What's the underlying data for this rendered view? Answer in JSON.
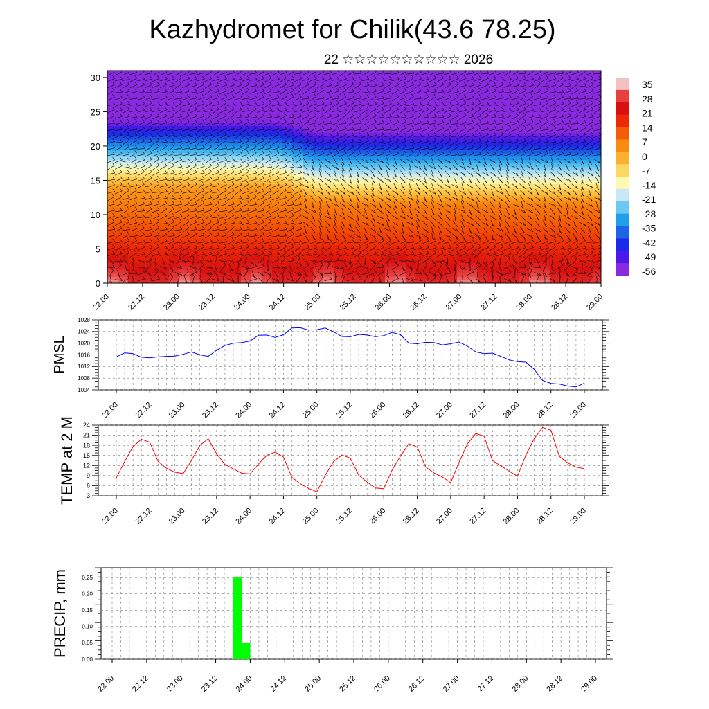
{
  "title": "Kazhydromet for Chilik(43.6 78.25)",
  "subtitle": "22 ☆☆☆☆☆☆☆☆☆☆ 2026",
  "time_ticks": [
    "22.00",
    "22.12",
    "23.00",
    "23.12",
    "24.00",
    "24.12",
    "25.00",
    "25.12",
    "26.00",
    "26.12",
    "27.00",
    "27.12",
    "28.00",
    "28.12",
    "29.00"
  ],
  "chart_data": [
    {
      "type": "heatmap",
      "name": "temperature-wind-cross-section",
      "y_ticks": [
        0,
        5,
        10,
        15,
        20,
        25,
        30
      ],
      "ylim": [
        0,
        31
      ],
      "colorbar": {
        "labels": [
          "35",
          "28",
          "21",
          "14",
          "7",
          "0",
          "-7",
          "-14",
          "-21",
          "-28",
          "-35",
          "-42",
          "-49",
          "-56"
        ],
        "colors": [
          "#f2c0c0",
          "#e84040",
          "#d81010",
          "#ee2a06",
          "#f55c05",
          "#fa8a10",
          "#fcb030",
          "#fdd860",
          "#fff8b0",
          "#c8e8f4",
          "#6cc8f0",
          "#20a0ec",
          "#1e64e8",
          "#1a2ae8",
          "#4c18ea",
          "#8a2ae0"
        ]
      }
    },
    {
      "type": "line",
      "name": "pmsl",
      "ylabel": "PMSL",
      "ylim": [
        1004,
        1028
      ],
      "y_ticks": [
        1004,
        1008,
        1012,
        1016,
        1020,
        1024,
        1028
      ],
      "color": "#0000ff",
      "x_step_hours": 3,
      "values": [
        1015.3,
        1016.7,
        1016.4,
        1015.2,
        1015.0,
        1015.3,
        1015.5,
        1015.6,
        1016.2,
        1017.0,
        1016.0,
        1015.5,
        1017.6,
        1019.2,
        1020.0,
        1020.2,
        1020.7,
        1022.7,
        1022.8,
        1022.0,
        1022.9,
        1025.2,
        1025.3,
        1024.5,
        1024.6,
        1025.2,
        1023.9,
        1022.3,
        1022.2,
        1023.0,
        1022.8,
        1022.2,
        1022.6,
        1023.7,
        1022.9,
        1020.0,
        1019.8,
        1020.3,
        1020.2,
        1019.4,
        1019.8,
        1020.4,
        1019.0,
        1017.0,
        1016.4,
        1016.6,
        1015.5,
        1014.3,
        1013.7,
        1013.5,
        1011.0,
        1007.2,
        1006.2,
        1006.0,
        1005.3,
        1005.0,
        1006.3
      ]
    },
    {
      "type": "line",
      "name": "temp-2m",
      "ylabel": "TEMP at 2 M",
      "ylim": [
        3,
        24
      ],
      "y_ticks": [
        3,
        6,
        9,
        12,
        15,
        18,
        21,
        24
      ],
      "color": "#ff0000",
      "x_step_hours": 3,
      "values": [
        8.3,
        13.2,
        17.6,
        19.8,
        18.9,
        13.2,
        11.2,
        10.0,
        9.6,
        13.5,
        18.0,
        19.9,
        15.5,
        12.3,
        11.0,
        9.7,
        9.5,
        12.4,
        15.0,
        16.0,
        14.5,
        8.5,
        6.6,
        5.2,
        4.2,
        9.1,
        13.2,
        15.1,
        14.2,
        9.1,
        7.1,
        5.3,
        5.1,
        10.7,
        14.8,
        18.5,
        17.5,
        11.6,
        9.8,
        8.6,
        6.9,
        12.9,
        18.4,
        21.5,
        20.7,
        13.5,
        11.9,
        10.3,
        8.8,
        15.1,
        20.0,
        23.3,
        22.5,
        14.7,
        12.8,
        11.5,
        11.1
      ]
    },
    {
      "type": "bar",
      "name": "precip",
      "ylabel": "PRECIP, mm",
      "ylim": [
        0,
        0.28
      ],
      "y_ticks": [
        "0.00",
        "0.05",
        "0.10",
        "0.15",
        "0.20",
        "0.25"
      ],
      "color": "#00ff00",
      "x_step_hours": 3,
      "bars": [
        {
          "start_hour": 42,
          "end_hour": 45,
          "value": 0.25
        },
        {
          "start_hour": 45,
          "end_hour": 48,
          "value": 0.05
        }
      ]
    }
  ]
}
